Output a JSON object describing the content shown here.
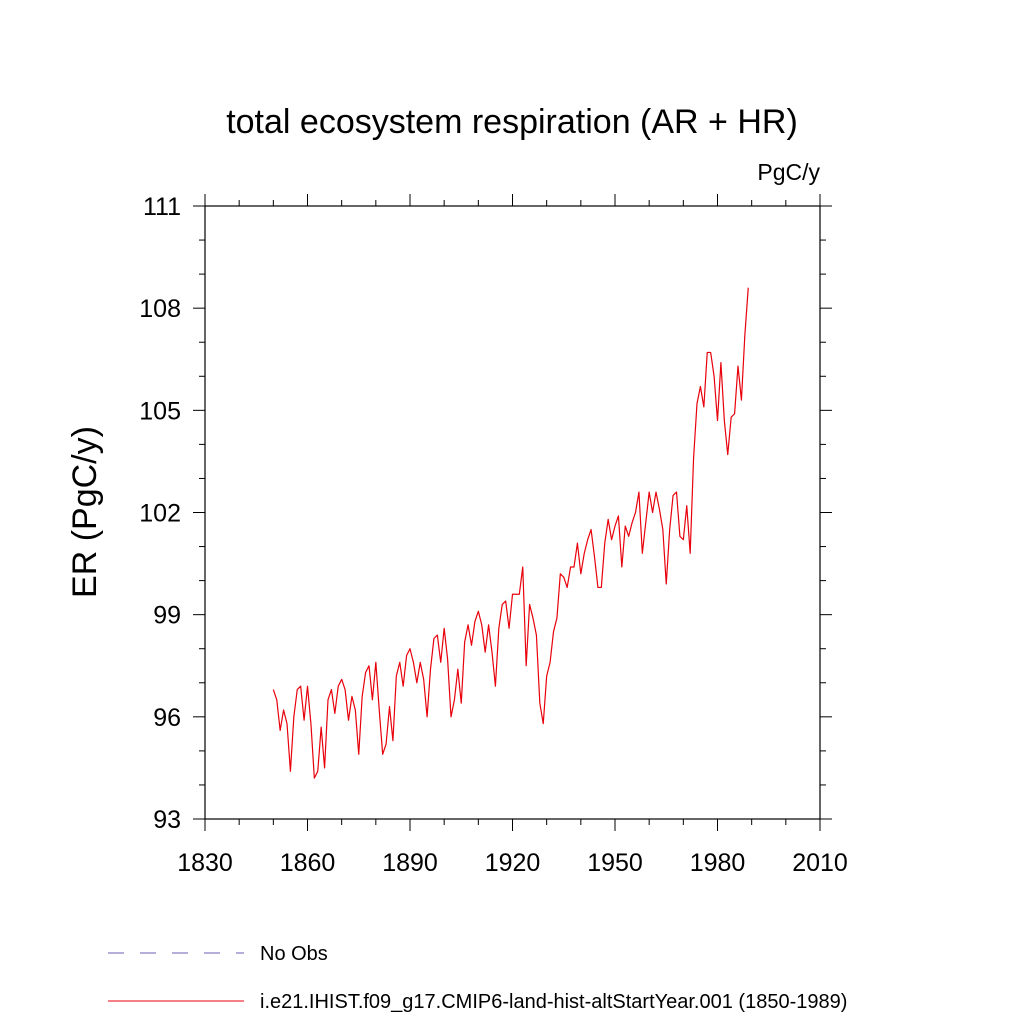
{
  "chart_data": {
    "type": "line",
    "title": "total ecosystem respiration (AR + HR)",
    "units": "PgC/y",
    "ylabel": "ER  (PgC/y)",
    "xlabel": "",
    "xlim": [
      1830,
      2010
    ],
    "ylim": [
      93,
      111
    ],
    "xticks": [
      1830,
      1860,
      1890,
      1920,
      1950,
      1980,
      2010
    ],
    "yticks": [
      93,
      96,
      99,
      102,
      105,
      108,
      111
    ],
    "grid": false,
    "legend_position": "bottom",
    "series": [
      {
        "name": "i.e21.IHIST.f09_g17.CMIP6-land-hist-altStartYear.001 (1850-1989)",
        "color": "#e8000b",
        "style": "solid",
        "x": [
          1850,
          1851,
          1852,
          1853,
          1854,
          1855,
          1856,
          1857,
          1858,
          1859,
          1860,
          1861,
          1862,
          1863,
          1864,
          1865,
          1866,
          1867,
          1868,
          1869,
          1870,
          1871,
          1872,
          1873,
          1874,
          1875,
          1876,
          1877,
          1878,
          1879,
          1880,
          1881,
          1882,
          1883,
          1884,
          1885,
          1886,
          1887,
          1888,
          1889,
          1890,
          1891,
          1892,
          1893,
          1894,
          1895,
          1896,
          1897,
          1898,
          1899,
          1900,
          1901,
          1902,
          1903,
          1904,
          1905,
          1906,
          1907,
          1908,
          1909,
          1910,
          1911,
          1912,
          1913,
          1914,
          1915,
          1916,
          1917,
          1918,
          1919,
          1920,
          1921,
          1922,
          1923,
          1924,
          1925,
          1926,
          1927,
          1928,
          1929,
          1930,
          1931,
          1932,
          1933,
          1934,
          1935,
          1936,
          1937,
          1938,
          1939,
          1940,
          1941,
          1942,
          1943,
          1944,
          1945,
          1946,
          1947,
          1948,
          1949,
          1950,
          1951,
          1952,
          1953,
          1954,
          1955,
          1956,
          1957,
          1958,
          1959,
          1960,
          1961,
          1962,
          1963,
          1964,
          1965,
          1966,
          1967,
          1968,
          1969,
          1970,
          1971,
          1972,
          1973,
          1974,
          1975,
          1976,
          1977,
          1978,
          1979,
          1980,
          1981,
          1982,
          1983,
          1984,
          1985,
          1986,
          1987,
          1988,
          1989
        ],
        "values": [
          96.8,
          96.5,
          95.6,
          96.2,
          95.8,
          94.4,
          96.0,
          96.8,
          96.9,
          95.9,
          96.9,
          95.8,
          94.2,
          94.4,
          95.7,
          94.5,
          96.5,
          96.8,
          96.1,
          96.9,
          97.1,
          96.8,
          95.9,
          96.6,
          96.2,
          94.9,
          96.6,
          97.3,
          97.5,
          96.5,
          97.6,
          96.2,
          94.9,
          95.2,
          96.3,
          95.3,
          97.2,
          97.6,
          96.9,
          97.8,
          98.0,
          97.6,
          97.0,
          97.6,
          97.1,
          96.0,
          97.4,
          98.3,
          98.4,
          97.6,
          98.6,
          97.7,
          96.0,
          96.5,
          97.4,
          96.4,
          98.2,
          98.7,
          98.1,
          98.8,
          99.1,
          98.7,
          97.9,
          98.7,
          97.9,
          96.9,
          98.6,
          99.3,
          99.4,
          98.6,
          99.6,
          99.6,
          99.6,
          100.4,
          97.5,
          99.3,
          98.9,
          98.4,
          96.4,
          95.8,
          97.2,
          97.6,
          98.5,
          98.9,
          100.2,
          100.1,
          99.8,
          100.4,
          100.4,
          101.1,
          100.2,
          100.8,
          101.2,
          101.5,
          100.7,
          99.8,
          99.8,
          101.1,
          101.8,
          101.2,
          101.6,
          101.9,
          100.4,
          101.6,
          101.3,
          101.7,
          102.0,
          102.6,
          100.8,
          101.7,
          102.6,
          102.0,
          102.6,
          102.1,
          101.5,
          99.9,
          101.5,
          102.5,
          102.6,
          101.3,
          101.2,
          102.2,
          100.8,
          103.6,
          105.2,
          105.7,
          105.1,
          106.7,
          106.7,
          106.0,
          104.7,
          106.4,
          104.7,
          103.7,
          104.8,
          104.9,
          106.3,
          105.3,
          107.2,
          108.6
        ]
      },
      {
        "name": "No Obs",
        "color": "#6b5fb5",
        "style": "dashed",
        "x": [],
        "values": []
      }
    ]
  }
}
